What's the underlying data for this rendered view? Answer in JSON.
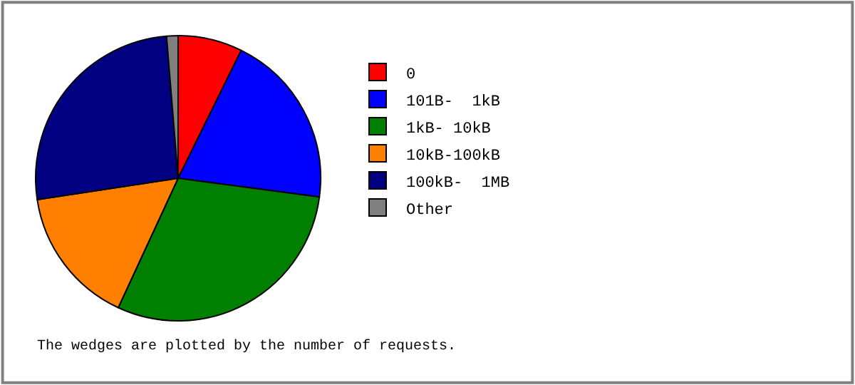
{
  "chart_data": {
    "type": "pie",
    "categories": [
      "0",
      "101B-  1kB",
      "1kB- 10kB",
      "10kB-100kB",
      "100kB-  1MB",
      "Other"
    ],
    "values": [
      7.3,
      19.8,
      29.8,
      15.7,
      26.1,
      1.3
    ],
    "colors": [
      "#ff0000",
      "#0000ff",
      "#008000",
      "#ff8000",
      "#000080",
      "#808080"
    ],
    "legend": "right",
    "annotations": [
      "The wedges are plotted by the number of requests."
    ]
  }
}
